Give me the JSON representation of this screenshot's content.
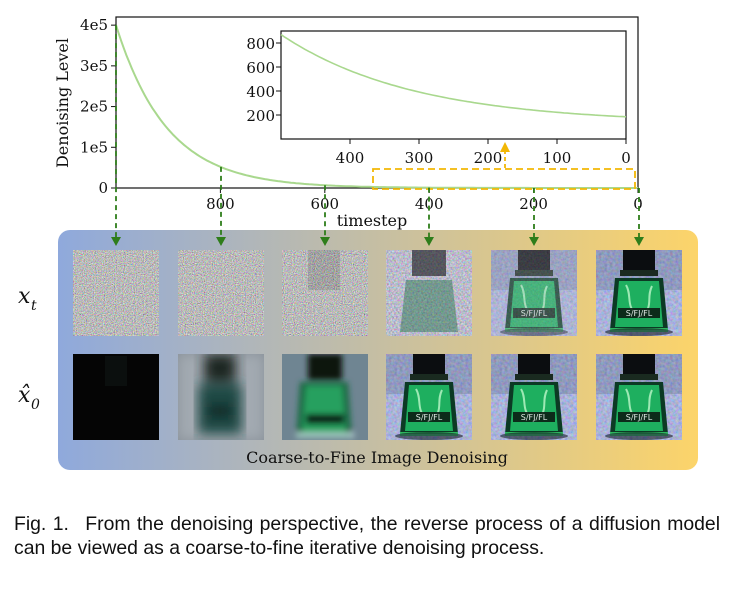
{
  "figure": {
    "main_chart": {
      "type": "line",
      "ylabel": "Denoising Level",
      "xlabel": "timestep",
      "y_tick_labels": [
        "4e5",
        "3e5",
        "2e5",
        "1e5",
        "0"
      ],
      "y_tick_values": [
        400000,
        300000,
        200000,
        100000,
        0
      ],
      "x_tick_labels": [
        "800",
        "600",
        "400",
        "200",
        "0"
      ],
      "x_tick_values": [
        800,
        600,
        400,
        200,
        0
      ],
      "xlim": [
        1000,
        0
      ],
      "ylim": [
        0,
        420000
      ],
      "x_reversed": true,
      "line_color": "#a9d88e",
      "decay": {
        "start_value": 400000,
        "rate_per_step": 0.0102
      }
    },
    "inset_chart": {
      "type": "line",
      "y_tick_labels": [
        "800",
        "600",
        "400",
        "200"
      ],
      "y_tick_values": [
        800,
        600,
        400,
        200
      ],
      "x_tick_labels": [
        "400",
        "300",
        "200",
        "100",
        "0"
      ],
      "x_tick_values": [
        400,
        300,
        200,
        100,
        0
      ],
      "xlim": [
        500,
        0
      ],
      "ylim": [
        0,
        900
      ],
      "x_reversed": true,
      "line_color": "#a9d88e"
    },
    "zoom_color": "#f2b705",
    "arrow_color": "#2e7d1a",
    "arrow_timesteps": [
      1000,
      800,
      600,
      400,
      200,
      0
    ],
    "rows": [
      {
        "label": "x_t",
        "label_main": "x",
        "label_sub": "t"
      },
      {
        "label": "x̂_0",
        "label_main": "x̂",
        "label_sub": "0"
      }
    ],
    "panel": {
      "title": "Coarse-to-Fine Image Denoising",
      "gradient_start": "#8fa9dc",
      "gradient_end": "#fcd46a"
    },
    "caption": {
      "label": "Fig. 1.",
      "text": "From the denoising perspective, the reverse process of a diffusion model can be viewed as a coarse-to-fine iterative denoising process."
    }
  }
}
